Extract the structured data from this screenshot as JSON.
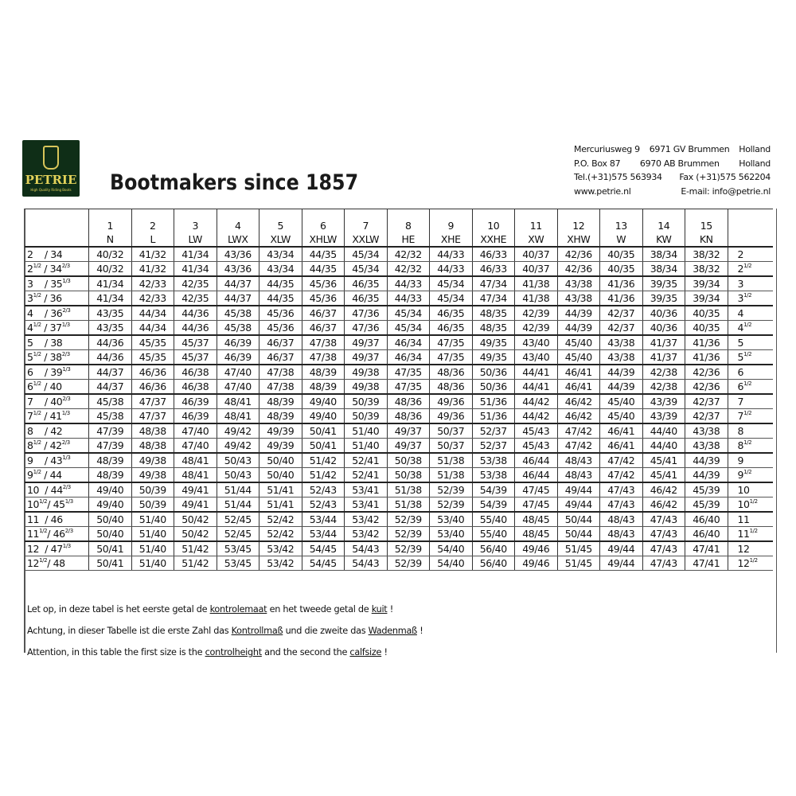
{
  "logo": {
    "name": "PETRIE",
    "tagline": "High Quality Riding Boots"
  },
  "title": "Bootmakers since 1857",
  "address": [
    [
      "Mercuriusweg 9",
      "6971 GV Brummen",
      "Holland"
    ],
    [
      "P.O. Box 87",
      "6970 AB Brummen",
      "Holland"
    ],
    [
      "Tel.(+31)575 563934",
      "Fax (+31)575 562204"
    ],
    [
      "www.petrie.nl",
      "E-mail: info@petrie.nl"
    ]
  ],
  "table": {
    "columns": [
      [
        "1",
        "N"
      ],
      [
        "2",
        "L"
      ],
      [
        "3",
        "LW"
      ],
      [
        "4",
        "LWX"
      ],
      [
        "5",
        "XLW"
      ],
      [
        "6",
        "XHLW"
      ],
      [
        "7",
        "XXLW"
      ],
      [
        "8",
        "HE"
      ],
      [
        "9",
        "XHE"
      ],
      [
        "10",
        "XXHE"
      ],
      [
        "11",
        "XW"
      ],
      [
        "12",
        "XHW"
      ],
      [
        "13",
        "W"
      ],
      [
        "14",
        "KW"
      ],
      [
        "15",
        "KN"
      ]
    ],
    "rows": [
      {
        "uk": "2",
        "uk_frac": "",
        "eu": "34",
        "eu_frac": "",
        "values": [
          "40/32",
          "41/32",
          "41/34",
          "43/36",
          "43/34",
          "44/35",
          "45/34",
          "42/32",
          "44/33",
          "46/33",
          "40/37",
          "42/36",
          "40/35",
          "38/34",
          "38/32"
        ]
      },
      {
        "uk": "2",
        "uk_frac": "1/2",
        "eu": "34",
        "eu_frac": "2/3",
        "values": [
          "40/32",
          "41/32",
          "41/34",
          "43/36",
          "43/34",
          "44/35",
          "45/34",
          "42/32",
          "44/33",
          "46/33",
          "40/37",
          "42/36",
          "40/35",
          "38/34",
          "38/32"
        ]
      },
      {
        "uk": "3",
        "uk_frac": "",
        "eu": "35",
        "eu_frac": "1/3",
        "values": [
          "41/34",
          "42/33",
          "42/35",
          "44/37",
          "44/35",
          "45/36",
          "46/35",
          "44/33",
          "45/34",
          "47/34",
          "41/38",
          "43/38",
          "41/36",
          "39/35",
          "39/34"
        ]
      },
      {
        "uk": "3",
        "uk_frac": "1/2",
        "eu": "36",
        "eu_frac": "",
        "values": [
          "41/34",
          "42/33",
          "42/35",
          "44/37",
          "44/35",
          "45/36",
          "46/35",
          "44/33",
          "45/34",
          "47/34",
          "41/38",
          "43/38",
          "41/36",
          "39/35",
          "39/34"
        ]
      },
      {
        "uk": "4",
        "uk_frac": "",
        "eu": "36",
        "eu_frac": "2/3",
        "values": [
          "43/35",
          "44/34",
          "44/36",
          "45/38",
          "45/36",
          "46/37",
          "47/36",
          "45/34",
          "46/35",
          "48/35",
          "42/39",
          "44/39",
          "42/37",
          "40/36",
          "40/35"
        ]
      },
      {
        "uk": "4",
        "uk_frac": "1/2",
        "eu": "37",
        "eu_frac": "1/3",
        "values": [
          "43/35",
          "44/34",
          "44/36",
          "45/38",
          "45/36",
          "46/37",
          "47/36",
          "45/34",
          "46/35",
          "48/35",
          "42/39",
          "44/39",
          "42/37",
          "40/36",
          "40/35"
        ]
      },
      {
        "uk": "5",
        "uk_frac": "",
        "eu": "38",
        "eu_frac": "",
        "values": [
          "44/36",
          "45/35",
          "45/37",
          "46/39",
          "46/37",
          "47/38",
          "49/37",
          "46/34",
          "47/35",
          "49/35",
          "43/40",
          "45/40",
          "43/38",
          "41/37",
          "41/36"
        ]
      },
      {
        "uk": "5",
        "uk_frac": "1/2",
        "eu": "38",
        "eu_frac": "2/3",
        "values": [
          "44/36",
          "45/35",
          "45/37",
          "46/39",
          "46/37",
          "47/38",
          "49/37",
          "46/34",
          "47/35",
          "49/35",
          "43/40",
          "45/40",
          "43/38",
          "41/37",
          "41/36"
        ]
      },
      {
        "uk": "6",
        "uk_frac": "",
        "eu": "39",
        "eu_frac": "1/3",
        "values": [
          "44/37",
          "46/36",
          "46/38",
          "47/40",
          "47/38",
          "48/39",
          "49/38",
          "47/35",
          "48/36",
          "50/36",
          "44/41",
          "46/41",
          "44/39",
          "42/38",
          "42/36"
        ]
      },
      {
        "uk": "6",
        "uk_frac": "1/2",
        "eu": "40",
        "eu_frac": "",
        "values": [
          "44/37",
          "46/36",
          "46/38",
          "47/40",
          "47/38",
          "48/39",
          "49/38",
          "47/35",
          "48/36",
          "50/36",
          "44/41",
          "46/41",
          "44/39",
          "42/38",
          "42/36"
        ]
      },
      {
        "uk": "7",
        "uk_frac": "",
        "eu": "40",
        "eu_frac": "2/3",
        "values": [
          "45/38",
          "47/37",
          "46/39",
          "48/41",
          "48/39",
          "49/40",
          "50/39",
          "48/36",
          "49/36",
          "51/36",
          "44/42",
          "46/42",
          "45/40",
          "43/39",
          "42/37"
        ]
      },
      {
        "uk": "7",
        "uk_frac": "1/2",
        "eu": "41",
        "eu_frac": "1/3",
        "values": [
          "45/38",
          "47/37",
          "46/39",
          "48/41",
          "48/39",
          "49/40",
          "50/39",
          "48/36",
          "49/36",
          "51/36",
          "44/42",
          "46/42",
          "45/40",
          "43/39",
          "42/37"
        ]
      },
      {
        "uk": "8",
        "uk_frac": "",
        "eu": "42",
        "eu_frac": "",
        "values": [
          "47/39",
          "48/38",
          "47/40",
          "49/42",
          "49/39",
          "50/41",
          "51/40",
          "49/37",
          "50/37",
          "52/37",
          "45/43",
          "47/42",
          "46/41",
          "44/40",
          "43/38"
        ]
      },
      {
        "uk": "8",
        "uk_frac": "1/2",
        "eu": "42",
        "eu_frac": "2/3",
        "values": [
          "47/39",
          "48/38",
          "47/40",
          "49/42",
          "49/39",
          "50/41",
          "51/40",
          "49/37",
          "50/37",
          "52/37",
          "45/43",
          "47/42",
          "46/41",
          "44/40",
          "43/38"
        ]
      },
      {
        "uk": "9",
        "uk_frac": "",
        "eu": "43",
        "eu_frac": "1/3",
        "values": [
          "48/39",
          "49/38",
          "48/41",
          "50/43",
          "50/40",
          "51/42",
          "52/41",
          "50/38",
          "51/38",
          "53/38",
          "46/44",
          "48/43",
          "47/42",
          "45/41",
          "44/39"
        ]
      },
      {
        "uk": "9",
        "uk_frac": "1/2",
        "eu": "44",
        "eu_frac": "",
        "values": [
          "48/39",
          "49/38",
          "48/41",
          "50/43",
          "50/40",
          "51/42",
          "52/41",
          "50/38",
          "51/38",
          "53/38",
          "46/44",
          "48/43",
          "47/42",
          "45/41",
          "44/39"
        ]
      },
      {
        "uk": "10",
        "uk_frac": "",
        "eu": "44",
        "eu_frac": "2/3",
        "values": [
          "49/40",
          "50/39",
          "49/41",
          "51/44",
          "51/41",
          "52/43",
          "53/41",
          "51/38",
          "52/39",
          "54/39",
          "47/45",
          "49/44",
          "47/43",
          "46/42",
          "45/39"
        ]
      },
      {
        "uk": "10",
        "uk_frac": "1/2",
        "eu": "45",
        "eu_frac": "1/3",
        "values": [
          "49/40",
          "50/39",
          "49/41",
          "51/44",
          "51/41",
          "52/43",
          "53/41",
          "51/38",
          "52/39",
          "54/39",
          "47/45",
          "49/44",
          "47/43",
          "46/42",
          "45/39"
        ]
      },
      {
        "uk": "11",
        "uk_frac": "",
        "eu": "46",
        "eu_frac": "",
        "values": [
          "50/40",
          "51/40",
          "50/42",
          "52/45",
          "52/42",
          "53/44",
          "53/42",
          "52/39",
          "53/40",
          "55/40",
          "48/45",
          "50/44",
          "48/43",
          "47/43",
          "46/40"
        ]
      },
      {
        "uk": "11",
        "uk_frac": "1/2",
        "eu": "46",
        "eu_frac": "2/3",
        "values": [
          "50/40",
          "51/40",
          "50/42",
          "52/45",
          "52/42",
          "53/44",
          "53/42",
          "52/39",
          "53/40",
          "55/40",
          "48/45",
          "50/44",
          "48/43",
          "47/43",
          "46/40"
        ]
      },
      {
        "uk": "12",
        "uk_frac": "",
        "eu": "47",
        "eu_frac": "1/3",
        "values": [
          "50/41",
          "51/40",
          "51/42",
          "53/45",
          "53/42",
          "54/45",
          "54/43",
          "52/39",
          "54/40",
          "56/40",
          "49/46",
          "51/45",
          "49/44",
          "47/43",
          "47/41"
        ]
      },
      {
        "uk": "12",
        "uk_frac": "1/2",
        "eu": "48",
        "eu_frac": "",
        "values": [
          "50/41",
          "51/40",
          "51/42",
          "53/45",
          "53/42",
          "54/45",
          "54/43",
          "52/39",
          "54/40",
          "56/40",
          "49/46",
          "51/45",
          "49/44",
          "47/43",
          "47/41"
        ]
      }
    ]
  },
  "notes": [
    [
      {
        "t": "Let op, in deze tabel is het eerste getal de "
      },
      {
        "t": "kontrolemaat",
        "u": true
      },
      {
        "t": " en het tweede getal de "
      },
      {
        "t": "kuit",
        "u": true
      },
      {
        "t": " !"
      }
    ],
    [
      {
        "t": "Achtung, in dieser Tabelle ist die erste Zahl das "
      },
      {
        "t": "Kontrollmaß",
        "u": true
      },
      {
        "t": " und die zweite das "
      },
      {
        "t": "Wadenmaß",
        "u": true
      },
      {
        "t": " !"
      }
    ],
    [
      {
        "t": "Attention, in this table the first size is the "
      },
      {
        "t": "controlheight",
        "u": true
      },
      {
        "t": " and the second the "
      },
      {
        "t": "calfsize",
        "u": true
      },
      {
        "t": " !"
      }
    ]
  ]
}
